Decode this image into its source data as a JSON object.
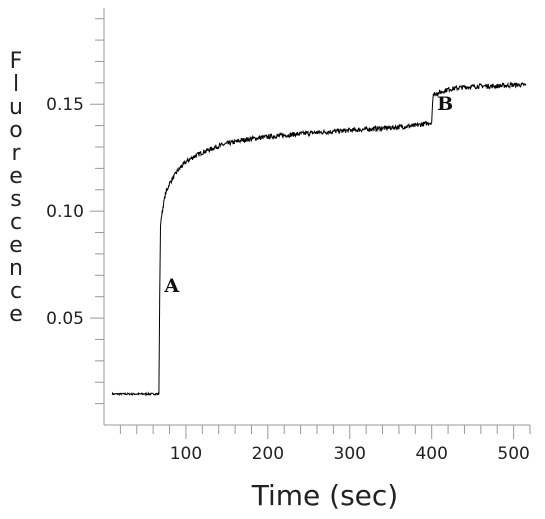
{
  "chart_data": {
    "type": "line",
    "xlabel": "Time (sec)",
    "ylabel": "Fluorescence",
    "xlim": [
      0,
      520
    ],
    "ylim": [
      0,
      0.195
    ],
    "x_ticks": [
      100,
      200,
      300,
      400,
      500
    ],
    "x_tick_labels": [
      "100",
      "200",
      "300",
      "400",
      "500"
    ],
    "y_ticks": [
      0.05,
      0.1,
      0.15
    ],
    "y_tick_labels": [
      "0.05",
      "0.10",
      "0.15"
    ],
    "grid": false,
    "legend": "none",
    "line_color": "#000000",
    "series": [
      {
        "x": [
          10,
          30,
          50,
          67,
          68,
          69,
          70,
          72,
          75,
          80,
          85,
          90,
          95,
          100,
          110,
          120,
          130,
          140,
          150,
          170,
          200,
          230,
          250,
          300,
          350,
          380,
          400,
          401,
          402,
          410,
          420,
          440,
          460,
          480,
          500,
          515
        ],
        "y": [
          0.0145,
          0.0145,
          0.0145,
          0.0145,
          0.06,
          0.093,
          0.097,
          0.102,
          0.108,
          0.113,
          0.116,
          0.119,
          0.121,
          0.123,
          0.1255,
          0.1275,
          0.129,
          0.1305,
          0.1315,
          0.1333,
          0.1348,
          0.1358,
          0.1365,
          0.1378,
          0.139,
          0.14,
          0.1415,
          0.15,
          0.1545,
          0.1555,
          0.157,
          0.158,
          0.1585,
          0.1585,
          0.159,
          0.159
        ]
      }
    ],
    "annotations": [
      {
        "text": "A",
        "x": 70,
        "y": 0.065
      },
      {
        "text": "B",
        "x": 403,
        "y": 0.15
      }
    ]
  }
}
